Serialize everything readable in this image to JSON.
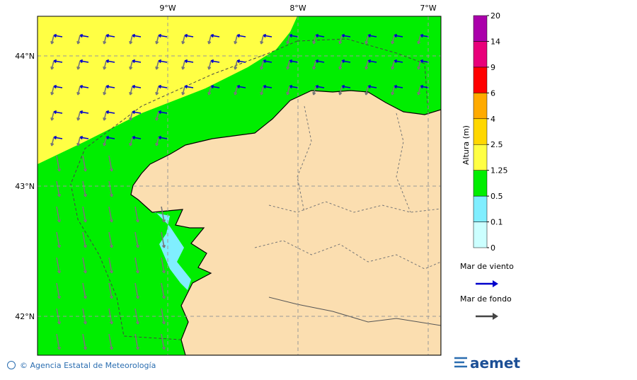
{
  "map": {
    "x_labels": [
      "9°W",
      "8°W",
      "7°W"
    ],
    "y_labels": [
      "44°N",
      "43°N",
      "42°N"
    ]
  },
  "colorbar": {
    "title": "Altura (m)",
    "labels": [
      "0",
      "0.1",
      "0.5",
      "1.25",
      "2.5",
      "4",
      "6",
      "9",
      "14",
      "20"
    ],
    "colors": [
      "#ccffff",
      "#80eeff",
      "#00ee00",
      "#ffff44",
      "#ffd700",
      "#ffaa00",
      "#ff0000",
      "#e8007a",
      "#aa00aa"
    ]
  },
  "legend": [
    {
      "label": "Mar de viento",
      "color": "#0000cc"
    },
    {
      "label": "Mar de fondo",
      "color": "#444444"
    }
  ],
  "footer": {
    "credit": "© Agencia Estatal de Meteorología",
    "logo": "aemet"
  }
}
